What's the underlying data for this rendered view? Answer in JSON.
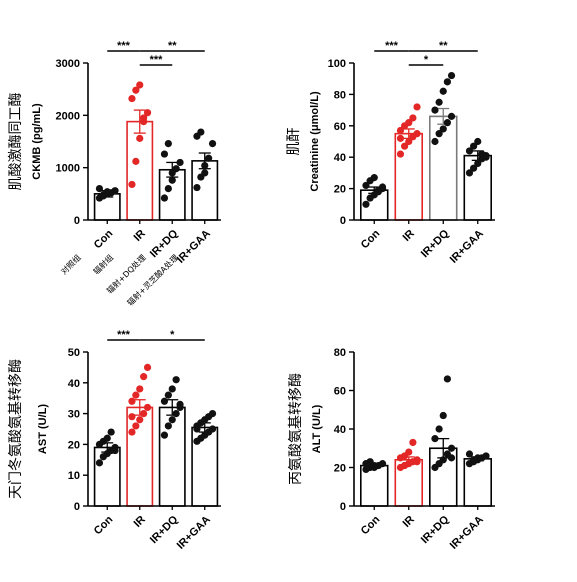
{
  "chart_data": [
    {
      "type": "bar",
      "ylabel": "CKMB (pg/mL)",
      "ylabel_cn": "肌酸激酶同工酶",
      "ylim": [
        0,
        3000
      ],
      "yticks": [
        0,
        1000,
        2000,
        3000
      ],
      "categories": [
        "Con",
        "IR",
        "IR+DQ",
        "IR+GAA"
      ],
      "category_labels_cn": [
        "对照组",
        "辐射组",
        "辐射+DQ处理",
        "辐射+灵芝酸A处理"
      ],
      "values": [
        500,
        1880,
        960,
        1130
      ],
      "errors": [
        60,
        220,
        140,
        150
      ],
      "bar_colors": [
        "#000000",
        "#e32626",
        "#000000",
        "#000000"
      ],
      "points": [
        [
          420,
          460,
          500,
          520,
          560,
          600,
          480,
          540
        ],
        [
          680,
          1120,
          1560,
          1880,
          2050,
          2320,
          2480,
          2580,
          1950
        ],
        [
          420,
          600,
          760,
          980,
          1100,
          1260,
          1460,
          900
        ],
        [
          620,
          820,
          1040,
          1180,
          1460,
          1600,
          1680,
          900
        ]
      ],
      "significance": [
        {
          "from": 0,
          "to": 1,
          "label": "***",
          "level": 0
        },
        {
          "from": 1,
          "to": 3,
          "label": "**",
          "level": 0
        },
        {
          "from": 1,
          "to": 2,
          "label": "***",
          "level": 1
        }
      ]
    },
    {
      "type": "bar",
      "ylabel": "Creatinine (μmol/L)",
      "ylabel_cn": "肌酐",
      "ylim": [
        0,
        100
      ],
      "yticks": [
        0,
        20,
        40,
        60,
        80,
        100
      ],
      "categories": [
        "Con",
        "IR",
        "IR+DQ",
        "IR+GAA"
      ],
      "values": [
        19,
        55,
        66,
        41
      ],
      "errors": [
        2,
        3,
        5,
        3
      ],
      "bar_colors": [
        "#000000",
        "#e32626",
        "#7a7a7a",
        "#000000"
      ],
      "points": [
        [
          10,
          14,
          16,
          18,
          20,
          22,
          25,
          27,
          19,
          21
        ],
        [
          42,
          47,
          50,
          53,
          55,
          57,
          60,
          62,
          65,
          72,
          52
        ],
        [
          50,
          55,
          58,
          62,
          66,
          70,
          75,
          82,
          88,
          92
        ],
        [
          30,
          33,
          36,
          39,
          41,
          44,
          47,
          50,
          42,
          40
        ]
      ],
      "significance": [
        {
          "from": 0,
          "to": 1,
          "label": "***",
          "level": 0
        },
        {
          "from": 1,
          "to": 3,
          "label": "**",
          "level": 0
        },
        {
          "from": 1,
          "to": 2,
          "label": "*",
          "level": 1
        }
      ]
    },
    {
      "type": "bar",
      "ylabel": "AST (U/L)",
      "ylabel_cn": "天门冬氨酸氨基转移酶",
      "ylim": [
        0,
        50
      ],
      "yticks": [
        0,
        10,
        20,
        30,
        40,
        50
      ],
      "categories": [
        "Con",
        "IR",
        "IR+DQ",
        "IR+GAA"
      ],
      "values": [
        19,
        32,
        32,
        25.5
      ],
      "errors": [
        1.5,
        2.5,
        2.5,
        1.5
      ],
      "bar_colors": [
        "#000000",
        "#e32626",
        "#000000",
        "#000000"
      ],
      "points": [
        [
          14,
          16,
          17,
          18,
          19,
          20,
          21,
          22,
          24,
          18
        ],
        [
          24,
          26,
          28,
          30,
          32,
          34,
          36,
          38,
          42,
          45,
          29
        ],
        [
          23,
          26,
          28,
          30,
          32,
          34,
          36,
          38,
          41,
          33
        ],
        [
          21,
          22,
          23,
          24,
          25,
          26,
          27,
          28,
          29,
          30,
          25
        ]
      ],
      "significance": [
        {
          "from": 0,
          "to": 1,
          "label": "***",
          "level": 0
        },
        {
          "from": 1,
          "to": 3,
          "label": "*",
          "level": 0
        }
      ]
    },
    {
      "type": "bar",
      "ylabel": "ALT (U/L)",
      "ylabel_cn": "丙氨酸氨基转移酶",
      "ylim": [
        0,
        80
      ],
      "yticks": [
        0,
        20,
        40,
        60,
        80
      ],
      "categories": [
        "Con",
        "IR",
        "IR+DQ",
        "IR+GAA"
      ],
      "values": [
        21,
        24,
        30,
        24.5
      ],
      "errors": [
        1,
        1.5,
        5,
        1
      ],
      "bar_colors": [
        "#000000",
        "#e32626",
        "#000000",
        "#000000"
      ],
      "points": [
        [
          19,
          20,
          21,
          21,
          22,
          22,
          23,
          20
        ],
        [
          20,
          21,
          22,
          23,
          24,
          25,
          26,
          28,
          33,
          23
        ],
        [
          20,
          22,
          24,
          27,
          30,
          35,
          40,
          47,
          66,
          25
        ],
        [
          22,
          23,
          24,
          25,
          26,
          27,
          24,
          25
        ]
      ],
      "significance": []
    }
  ]
}
